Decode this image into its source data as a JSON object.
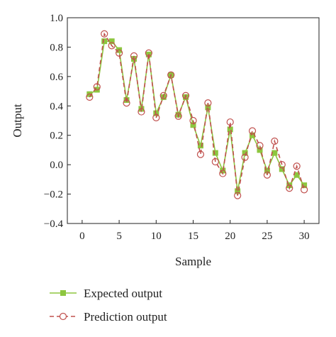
{
  "chart_data": {
    "type": "line",
    "title": "",
    "xlabel": "Sample",
    "ylabel": "Output",
    "xlim": [
      -2,
      32
    ],
    "ylim": [
      -0.4,
      1.0
    ],
    "xticks": [
      0,
      5,
      10,
      15,
      20,
      25,
      30
    ],
    "xtick_labels": [
      "0",
      "5",
      "10",
      "15",
      "20",
      "25",
      "30"
    ],
    "yticks": [
      -0.4,
      -0.2,
      0.0,
      0.2,
      0.4,
      0.6,
      0.8,
      1.0
    ],
    "ytick_labels": [
      "−0.4",
      "−0.2",
      "0.0",
      "0.2",
      "0.4",
      "0.6",
      "0.8",
      "1.0"
    ],
    "grid": false,
    "legend_position": "below",
    "x": [
      1,
      2,
      3,
      4,
      5,
      6,
      7,
      8,
      9,
      10,
      11,
      12,
      13,
      14,
      15,
      16,
      17,
      18,
      19,
      20,
      21,
      22,
      23,
      24,
      25,
      26,
      27,
      28,
      29,
      30
    ],
    "series": [
      {
        "name": "Expected output",
        "color": "#8dc63f",
        "marker": "square",
        "line_style": "solid",
        "values": [
          0.48,
          0.51,
          0.84,
          0.84,
          0.78,
          0.44,
          0.72,
          0.38,
          0.75,
          0.35,
          0.46,
          0.61,
          0.34,
          0.46,
          0.27,
          0.13,
          0.39,
          0.08,
          -0.04,
          0.24,
          -0.18,
          0.08,
          0.2,
          0.1,
          -0.04,
          0.08,
          -0.03,
          -0.14,
          -0.07,
          -0.14
        ]
      },
      {
        "name": "Prediction output",
        "color": "#c0504d",
        "marker": "circle-open",
        "line_style": "dashed",
        "values": [
          0.46,
          0.53,
          0.89,
          0.81,
          0.76,
          0.42,
          0.74,
          0.36,
          0.76,
          0.32,
          0.47,
          0.61,
          0.33,
          0.47,
          0.3,
          0.07,
          0.42,
          0.02,
          -0.06,
          0.29,
          -0.21,
          0.05,
          0.23,
          0.13,
          -0.07,
          0.16,
          0.0,
          -0.16,
          -0.01,
          -0.17
        ]
      }
    ]
  }
}
